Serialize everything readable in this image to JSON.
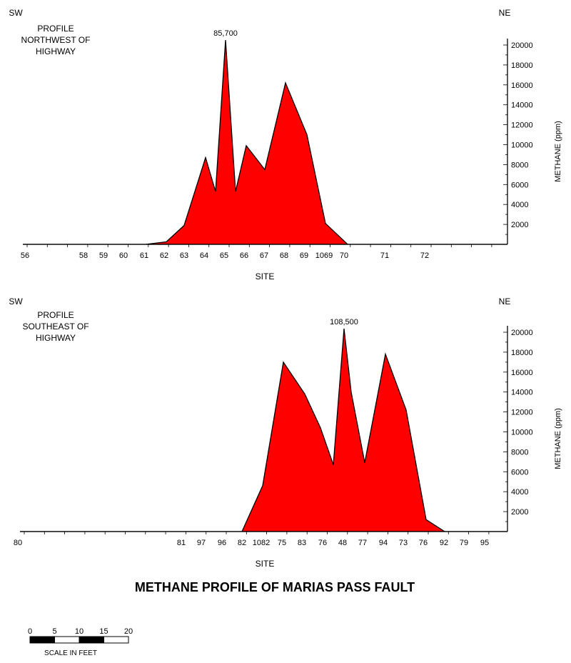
{
  "chart_data": [
    {
      "type": "area",
      "title": "PROFILE NORTHWEST OF HIGHWAY",
      "title_lines": [
        "PROFILE",
        "NORTHWEST OF",
        "HIGHWAY"
      ],
      "left_direction": "SW",
      "right_direction": "NE",
      "xlabel": "SITE",
      "ylabel": "METHANE (ppm)",
      "ylim": [
        0,
        20000
      ],
      "yticks": [
        2000,
        4000,
        6000,
        8000,
        10000,
        12000,
        14000,
        16000,
        18000,
        20000
      ],
      "site_labels": [
        "56",
        "58",
        "59",
        "60",
        "61",
        "62",
        "63",
        "64",
        "65",
        "66",
        "67",
        "68",
        "69",
        "1069",
        "70",
        "71",
        "72"
      ],
      "peak_annotation": "85,700",
      "fill_color": "#ff0000",
      "series": [
        {
          "values": [
            {
              "site": "56",
              "methane": 0
            },
            {
              "site": "61",
              "methane": 0
            },
            {
              "site": "62",
              "methane": 250
            },
            {
              "site": "63",
              "methane": 1900
            },
            {
              "site": "64",
              "methane": 8700
            },
            {
              "site": "64.5",
              "methane": 5300
            },
            {
              "site": "65",
              "methane": 85700
            },
            {
              "site": "65.5",
              "methane": 5300
            },
            {
              "site": "66",
              "methane": 9900
            },
            {
              "site": "67",
              "methane": 7500
            },
            {
              "site": "68",
              "methane": 16200
            },
            {
              "site": "69",
              "methane": 11000
            },
            {
              "site": "1069",
              "methane": 2100
            },
            {
              "site": "70",
              "methane": 0
            },
            {
              "site": "72",
              "methane": 0
            }
          ]
        }
      ]
    },
    {
      "type": "area",
      "title": "PROFILE SOUTHEAST OF HIGHWAY",
      "title_lines": [
        "PROFILE",
        "SOUTHEAST OF",
        "HIGHWAY"
      ],
      "left_direction": "SW",
      "right_direction": "NE",
      "xlabel": "SITE",
      "ylabel": "METHANE (ppm)",
      "ylim": [
        0,
        20000
      ],
      "yticks": [
        2000,
        4000,
        6000,
        8000,
        10000,
        12000,
        14000,
        16000,
        18000,
        20000
      ],
      "site_labels": [
        "80",
        "81",
        "97",
        "96",
        "82",
        "1082",
        "75",
        "83",
        "76",
        "48",
        "77",
        "94",
        "73",
        "76",
        "92",
        "79",
        "95"
      ],
      "peak_annotation": "108,500",
      "fill_color": "#ff0000",
      "series": [
        {
          "values": [
            {
              "site": "80",
              "methane": 0
            },
            {
              "site": "82",
              "methane": 0
            },
            {
              "site": "1082",
              "methane": 4600
            },
            {
              "site": "75",
              "methane": 17000
            },
            {
              "site": "83",
              "methane": 13800
            },
            {
              "site": "76",
              "methane": 10400
            },
            {
              "site": "76.5",
              "methane": 6700
            },
            {
              "site": "48",
              "methane": 108500
            },
            {
              "site": "48.5",
              "methane": 14000
            },
            {
              "site": "77",
              "methane": 6900
            },
            {
              "site": "94",
              "methane": 17800
            },
            {
              "site": "73",
              "methane": 12200
            },
            {
              "site": "76",
              "methane": 1200
            },
            {
              "site": "92",
              "methane": 0
            },
            {
              "site": "95",
              "methane": 0
            }
          ]
        }
      ]
    }
  ],
  "main_title": "METHANE PROFILE OF MARIAS PASS FAULT",
  "scale_bar": {
    "labels": [
      "0",
      "5",
      "10",
      "15",
      "20"
    ],
    "caption": "SCALE IN FEET"
  }
}
